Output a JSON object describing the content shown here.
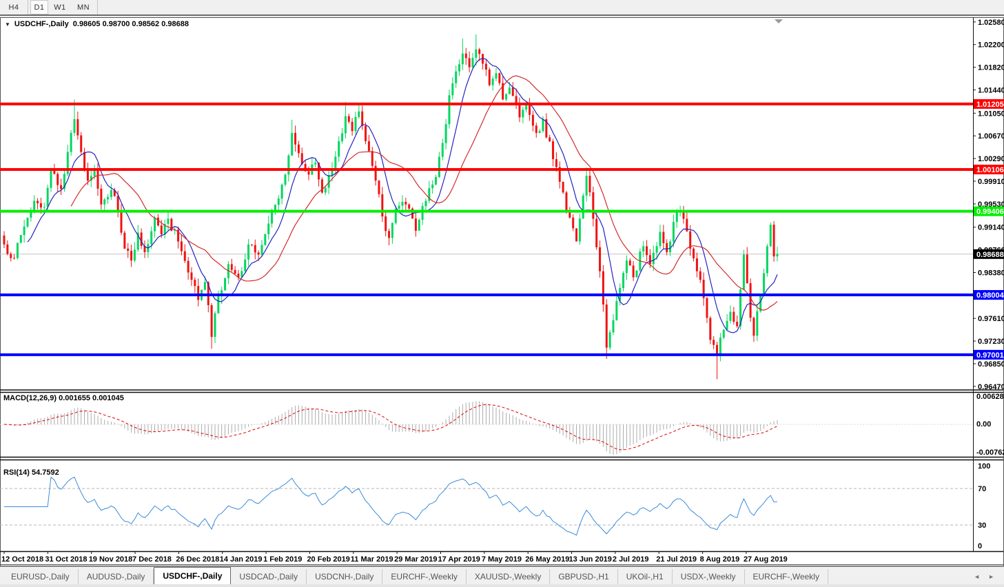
{
  "toolbar": {
    "timeframes": [
      "H4",
      "D1",
      "W1",
      "MN"
    ],
    "active_timeframe": "D1"
  },
  "chart": {
    "title": "USDCHF-,Daily",
    "ohlc_text": "0.98605 0.98700 0.98562 0.98688"
  },
  "macd_panel_label": "MACD(12,26,9) 0.001655 0.001045",
  "rsi_panel_label": "RSI(14) 54.7592",
  "tabs": {
    "items": [
      "EURUSD-,Daily",
      "AUDUSD-,Daily",
      "USDCHF-,Daily",
      "USDCAD-,Daily",
      "USDCNH-,Daily",
      "EURCHF-,Weekly",
      "XAUUSD-,Weekly",
      "GBPUSD-,H1",
      "UKOil-,H1",
      "USDX-,Weekly",
      "EURCHF-,Weekly"
    ],
    "active_index": 2,
    "left_arrow": "◄",
    "right_arrow": "►"
  },
  "chart_data": {
    "type": "candlestick",
    "symbol": "USDCHF",
    "timeframe": "Daily",
    "open": 0.98605,
    "high": 0.987,
    "low": 0.98562,
    "close": 0.98688,
    "current_price": 0.98688,
    "current_price_label": "0.98688",
    "y_ticks": [
      1.0258,
      1.022,
      1.0182,
      1.0144,
      1.0105,
      1.0067,
      1.0029,
      0.9991,
      0.9953,
      0.9914,
      0.9876,
      0.9838,
      0.9761,
      0.9723,
      0.9685,
      0.9647
    ],
    "x_labels": [
      "12 Oct 2018",
      "31 Oct 2018",
      "19 Nov 2018",
      "7 Dec 2018",
      "26 Dec 2018",
      "14 Jan 2019",
      "1 Feb 2019",
      "20 Feb 2019",
      "11 Mar 2019",
      "29 Mar 2019",
      "17 Apr 2019",
      "7 May 2019",
      "26 May 2019",
      "13 Jun 2019",
      "2 Jul 2019",
      "21 Jul 2019",
      "8 Aug 2019",
      "27 Aug 2019"
    ],
    "price_max": 1.02659,
    "price_min": 0.96422,
    "hlines": [
      {
        "price": 1.01205,
        "label": "1.01205",
        "color": "#ff0000"
      },
      {
        "price": 1.00106,
        "label": "1.00106",
        "color": "#ff0000"
      },
      {
        "price": 0.99406,
        "label": "0.99406",
        "color": "#00ee00"
      },
      {
        "price": 0.98004,
        "label": "0.98004",
        "color": "#0000ff"
      },
      {
        "price": 0.97001,
        "label": "0.97001",
        "color": "#0000ff"
      }
    ],
    "colors": {
      "bull": "#00d75f",
      "bear": "#f01212",
      "ma_fast": "#2323be",
      "ma_slow": "#d22a2a",
      "macd_hist": "#ababab",
      "macd_signal": "#e00000",
      "rsi_line": "#3a8bd8",
      "current_line": "#c4c4c4"
    },
    "ma_periods": {
      "fast": 8,
      "slow": 21
    },
    "candles_n": 232,
    "close_anchors": [
      [
        0,
        0.9885
      ],
      [
        3,
        0.9862
      ],
      [
        6,
        0.9915
      ],
      [
        9,
        0.9958
      ],
      [
        12,
        0.9948
      ],
      [
        14,
        1.001
      ],
      [
        17,
        0.9978
      ],
      [
        19,
        1.004
      ],
      [
        21,
        1.0095
      ],
      [
        23,
        1.004
      ],
      [
        25,
        0.9992
      ],
      [
        27,
        1.0012
      ],
      [
        29,
        0.9952
      ],
      [
        32,
        0.9976
      ],
      [
        34,
        0.994
      ],
      [
        36,
        0.9878
      ],
      [
        38,
        0.9858
      ],
      [
        40,
        0.9905
      ],
      [
        42,
        0.9872
      ],
      [
        45,
        0.993
      ],
      [
        47,
        0.9902
      ],
      [
        49,
        0.9928
      ],
      [
        52,
        0.989
      ],
      [
        55,
        0.9838
      ],
      [
        58,
        0.9792
      ],
      [
        60,
        0.9822
      ],
      [
        62,
        0.973
      ],
      [
        64,
        0.9798
      ],
      [
        67,
        0.9852
      ],
      [
        70,
        0.983
      ],
      [
        73,
        0.9885
      ],
      [
        76,
        0.9868
      ],
      [
        79,
        0.992
      ],
      [
        82,
        0.9962
      ],
      [
        84,
        1.0002
      ],
      [
        86,
        1.0072
      ],
      [
        88,
        1.0038
      ],
      [
        91,
        1.0002
      ],
      [
        93,
        1.0022
      ],
      [
        95,
        0.9972
      ],
      [
        98,
        1.0012
      ],
      [
        100,
        1.0058
      ],
      [
        102,
        1.01
      ],
      [
        104,
        1.0075
      ],
      [
        106,
        1.0108
      ],
      [
        108,
        1.0058
      ],
      [
        111,
        0.9992
      ],
      [
        113,
        0.9932
      ],
      [
        115,
        0.9896
      ],
      [
        117,
        0.9945
      ],
      [
        120,
        0.9952
      ],
      [
        123,
        0.9908
      ],
      [
        126,
        0.9958
      ],
      [
        129,
        0.9998
      ],
      [
        131,
        1.0055
      ],
      [
        133,
        1.0135
      ],
      [
        135,
        1.0175
      ],
      [
        137,
        1.0205
      ],
      [
        139,
        1.0182
      ],
      [
        141,
        1.0212
      ],
      [
        143,
        1.0188
      ],
      [
        145,
        1.0152
      ],
      [
        147,
        1.0172
      ],
      [
        149,
        1.0128
      ],
      [
        151,
        1.0148
      ],
      [
        154,
        1.0098
      ],
      [
        156,
        1.0122
      ],
      [
        159,
        1.0072
      ],
      [
        161,
        1.0095
      ],
      [
        164,
        1.0028
      ],
      [
        166,
        0.999
      ],
      [
        169,
        0.993
      ],
      [
        171,
        0.989
      ],
      [
        174,
        1.0
      ],
      [
        176,
        0.9928
      ],
      [
        178,
        0.984
      ],
      [
        180,
        0.9712
      ],
      [
        182,
        0.9758
      ],
      [
        184,
        0.9812
      ],
      [
        186,
        0.9858
      ],
      [
        188,
        0.983
      ],
      [
        191,
        0.9882
      ],
      [
        193,
        0.9852
      ],
      [
        196,
        0.9906
      ],
      [
        198,
        0.9872
      ],
      [
        201,
        0.994
      ],
      [
        203,
        0.9928
      ],
      [
        205,
        0.9878
      ],
      [
        207,
        0.984
      ],
      [
        209,
        0.9795
      ],
      [
        211,
        0.9725
      ],
      [
        213,
        0.97
      ],
      [
        215,
        0.9742
      ],
      [
        217,
        0.9772
      ],
      [
        219,
        0.9748
      ],
      [
        221,
        0.9868
      ],
      [
        223,
        0.9762
      ],
      [
        224,
        0.9732
      ],
      [
        226,
        0.9802
      ],
      [
        228,
        0.9882
      ],
      [
        229,
        0.9918
      ],
      [
        230,
        0.9865
      ],
      [
        231,
        0.98688
      ]
    ],
    "wick_overrides": {
      "21": {
        "h": 1.0128
      },
      "62": {
        "l": 0.971
      },
      "86": {
        "h": 1.0094
      },
      "102": {
        "h": 1.0124
      },
      "106": {
        "h": 1.0121
      },
      "137": {
        "h": 1.023
      },
      "141": {
        "h": 1.0237
      },
      "174": {
        "h": 1.0014
      },
      "180": {
        "l": 0.9693
      },
      "213": {
        "l": 0.9659
      },
      "229": {
        "h": 0.9922
      }
    },
    "indicators": {
      "macd": {
        "label": "MACD(12,26,9) 0.001655 0.001045",
        "params": [
          12,
          26,
          9
        ],
        "value": 0.001655,
        "signal": 0.001045,
        "axis_labels": [
          "0.006286",
          "0.00",
          "-0.00762"
        ]
      },
      "rsi": {
        "label": "RSI(14) 54.7592",
        "period": 14,
        "value": 54.7592,
        "axis_labels": [
          "100",
          "70",
          "30",
          "0"
        ],
        "levels": [
          70,
          30
        ]
      }
    }
  }
}
